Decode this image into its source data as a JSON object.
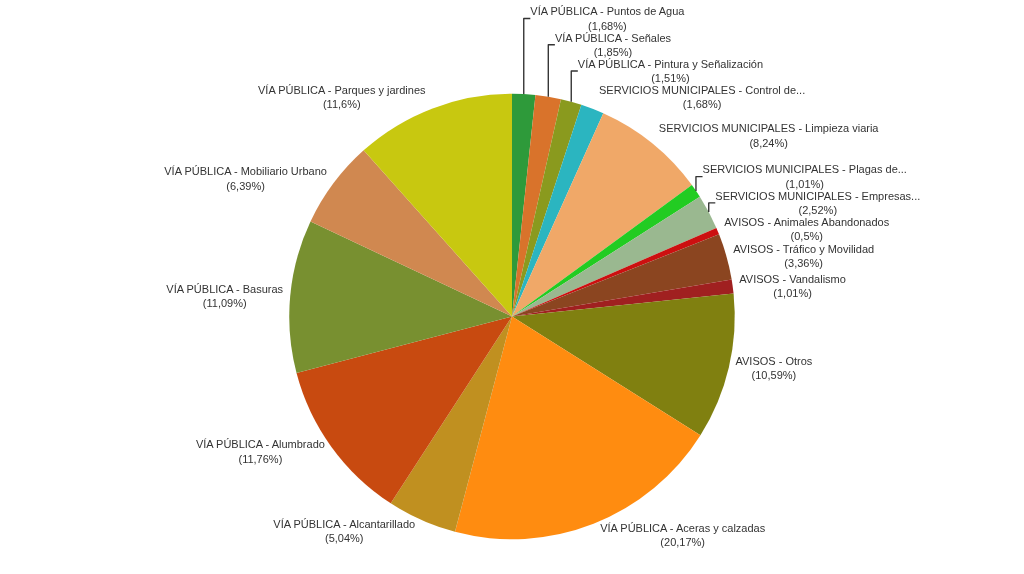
{
  "chart_data": {
    "type": "pie",
    "categories": [
      "VÍA PÚBLICA - Puntos de Agua",
      "VÍA PÚBLICA - Señales",
      "VÍA PÚBLICA - Pintura y Señalización",
      "SERVICIOS MUNICIPALES - Control de...",
      "SERVICIOS MUNICIPALES - Limpieza viaria",
      "SERVICIOS MUNICIPALES - Plagas de...",
      "SERVICIOS MUNICIPALES - Empresas...",
      "AVISOS - Animales Abandonados",
      "AVISOS - Tráfico y Movilidad",
      "AVISOS - Vandalismo",
      "AVISOS - Otros",
      "VÍA PÚBLICA - Aceras y calzadas",
      "VÍA PÚBLICA - Alcantarillado",
      "VÍA PÚBLICA - Alumbrado",
      "VÍA PÚBLICA - Basuras",
      "VÍA PÚBLICA - Mobiliario Urbano",
      "VÍA PÚBLICA - Parques y jardines"
    ],
    "values": [
      1.68,
      1.85,
      1.51,
      1.68,
      8.24,
      1.01,
      2.52,
      0.5,
      3.36,
      1.01,
      10.59,
      20.17,
      5.04,
      11.76,
      11.09,
      6.39,
      11.6
    ],
    "value_labels": [
      "(1,68%)",
      "(1,85%)",
      "(1,51%)",
      "(1,68%)",
      "(8,24%)",
      "(1,01%)",
      "(2,52%)",
      "(0,5%)",
      "(3,36%)",
      "(1,01%)",
      "(10,59%)",
      "(20,17%)",
      "(5,04%)",
      "(11,76%)",
      "(11,09%)",
      "(6,39%)",
      "(11,6%)"
    ],
    "colors": [
      "#2e9a3a",
      "#d9732b",
      "#8a9a1e",
      "#2bb5c0",
      "#f0a868",
      "#22cc22",
      "#9ab890",
      "#cc1010",
      "#8b4520",
      "#a02020",
      "#808010",
      "#ff8c10",
      "#c09020",
      "#c84a10",
      "#789030",
      "#d08850",
      "#c8c810"
    ],
    "legend": false
  }
}
